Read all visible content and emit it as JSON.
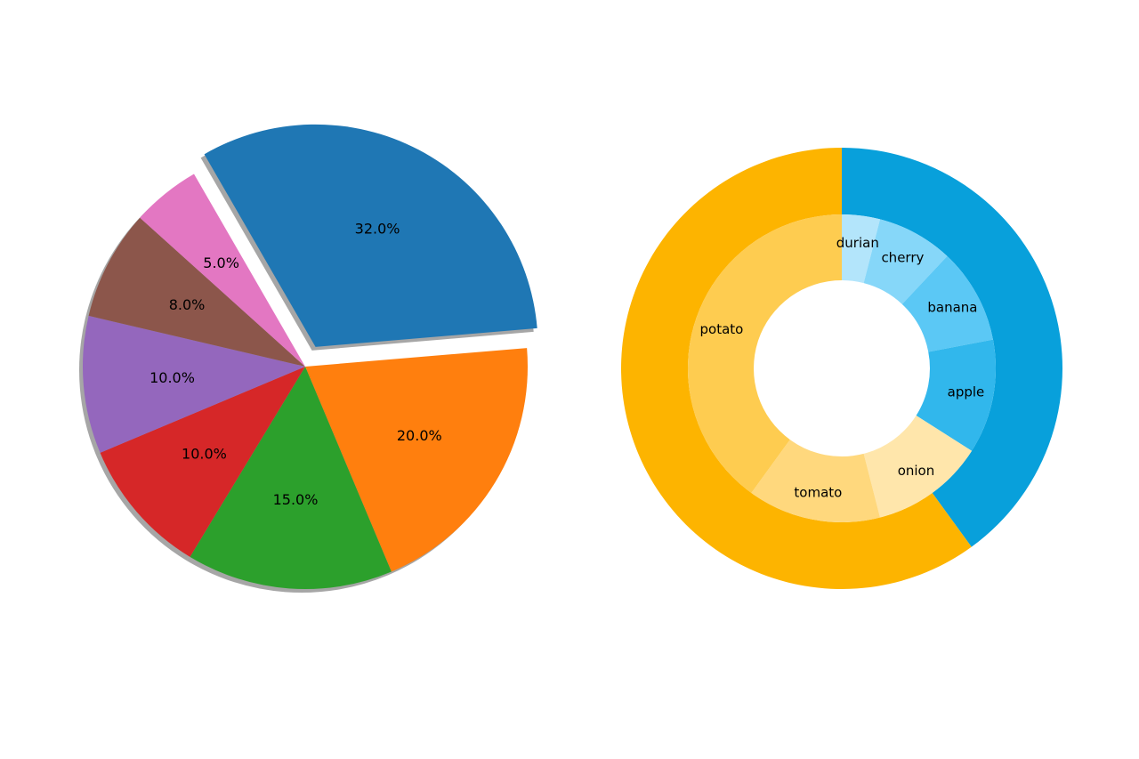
{
  "chart_data": [
    {
      "type": "pie",
      "title": "",
      "autopct": true,
      "shadow": true,
      "slices": [
        {
          "value": 32.0,
          "label_text": "32.0%",
          "color": "#1f77b4",
          "explode": true
        },
        {
          "value": 20.0,
          "label_text": "20.0%",
          "color": "#ff7f0e",
          "explode": false
        },
        {
          "value": 15.0,
          "label_text": "15.0%",
          "color": "#2ca02c",
          "explode": false
        },
        {
          "value": 10.0,
          "label_text": "10.0%",
          "color": "#d62728",
          "explode": false
        },
        {
          "value": 10.0,
          "label_text": "10.0%",
          "color": "#9467bd",
          "explode": false
        },
        {
          "value": 8.0,
          "label_text": "8.0%",
          "color": "#8c564b",
          "explode": false
        },
        {
          "value": 5.0,
          "label_text": "5.0%",
          "color": "#e377c2",
          "explode": false
        }
      ]
    },
    {
      "type": "donut",
      "title": "",
      "outer_ring": [
        {
          "value": 40,
          "color": "#08a0db"
        },
        {
          "value": 60,
          "color": "#fdb400"
        }
      ],
      "inner_ring": [
        {
          "label": "durian",
          "value": 4,
          "color": "#b3e5fb"
        },
        {
          "label": "cherry",
          "value": 8,
          "color": "#86d7f9"
        },
        {
          "label": "banana",
          "value": 10,
          "color": "#5bc8f5"
        },
        {
          "label": "apple",
          "value": 12,
          "color": "#31b7ec"
        },
        {
          "label": "onion",
          "value": 12,
          "color": "#ffe6ab"
        },
        {
          "label": "tomato",
          "value": 14,
          "color": "#ffd87d"
        },
        {
          "label": "potato",
          "value": 40,
          "color": "#fecc50"
        }
      ]
    }
  ]
}
